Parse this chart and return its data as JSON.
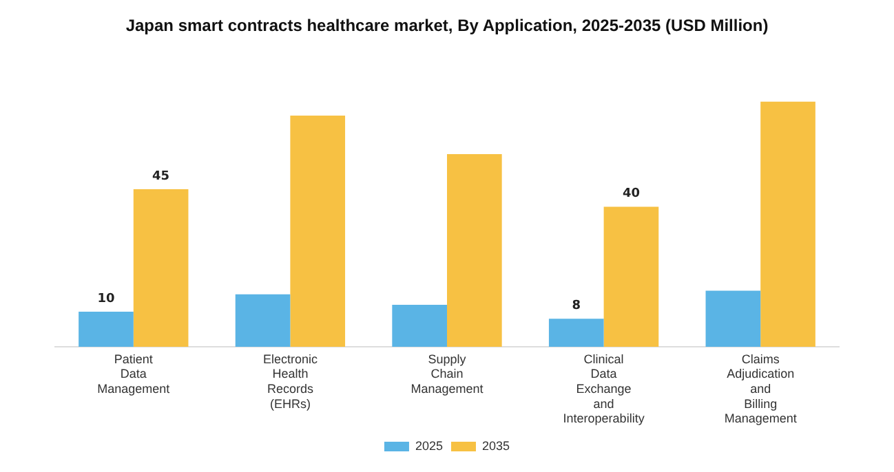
{
  "chart_data": {
    "type": "bar",
    "title": "Japan smart contracts healthcare market, By Application, 2025-2035 (USD Million)",
    "categories": [
      "Patient Data Management",
      "Electronic Health Records (EHRs)",
      "Supply Chain Management",
      "Clinical Data Exchange and Interoperability",
      "Claims Adjudication and Billing Management"
    ],
    "series": [
      {
        "name": "2025",
        "color": "#5ab4e5",
        "values": [
          10,
          15,
          12,
          8,
          16
        ],
        "value_labels": [
          "10",
          null,
          null,
          "8",
          null
        ]
      },
      {
        "name": "2035",
        "color": "#f7c143",
        "values": [
          45,
          66,
          55,
          40,
          70
        ],
        "value_labels": [
          "45",
          null,
          null,
          "40",
          null
        ]
      }
    ],
    "legend": "bottom",
    "grid": false
  }
}
